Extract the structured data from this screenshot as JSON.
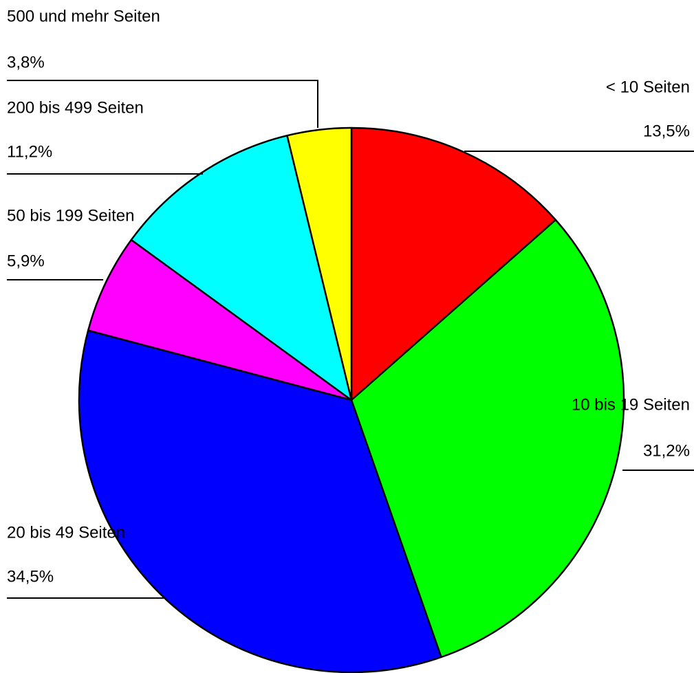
{
  "chart_data": {
    "type": "pie",
    "categories": [
      "< 10 Seiten",
      "10 bis 19 Seiten",
      "20 bis 49 Seiten",
      "50 bis 199 Seiten",
      "200 bis 499 Seiten",
      "500 und mehr Seiten"
    ],
    "values": [
      13.5,
      31.2,
      34.5,
      5.9,
      11.2,
      3.8
    ],
    "value_labels": [
      "13,5%",
      "31,2%",
      "34,5%",
      "5,9%",
      "11,2%",
      "3,8%"
    ],
    "colors": [
      "#ff0000",
      "#00ff00",
      "#0000ff",
      "#ff00ff",
      "#00ffff",
      "#ffff00"
    ]
  }
}
